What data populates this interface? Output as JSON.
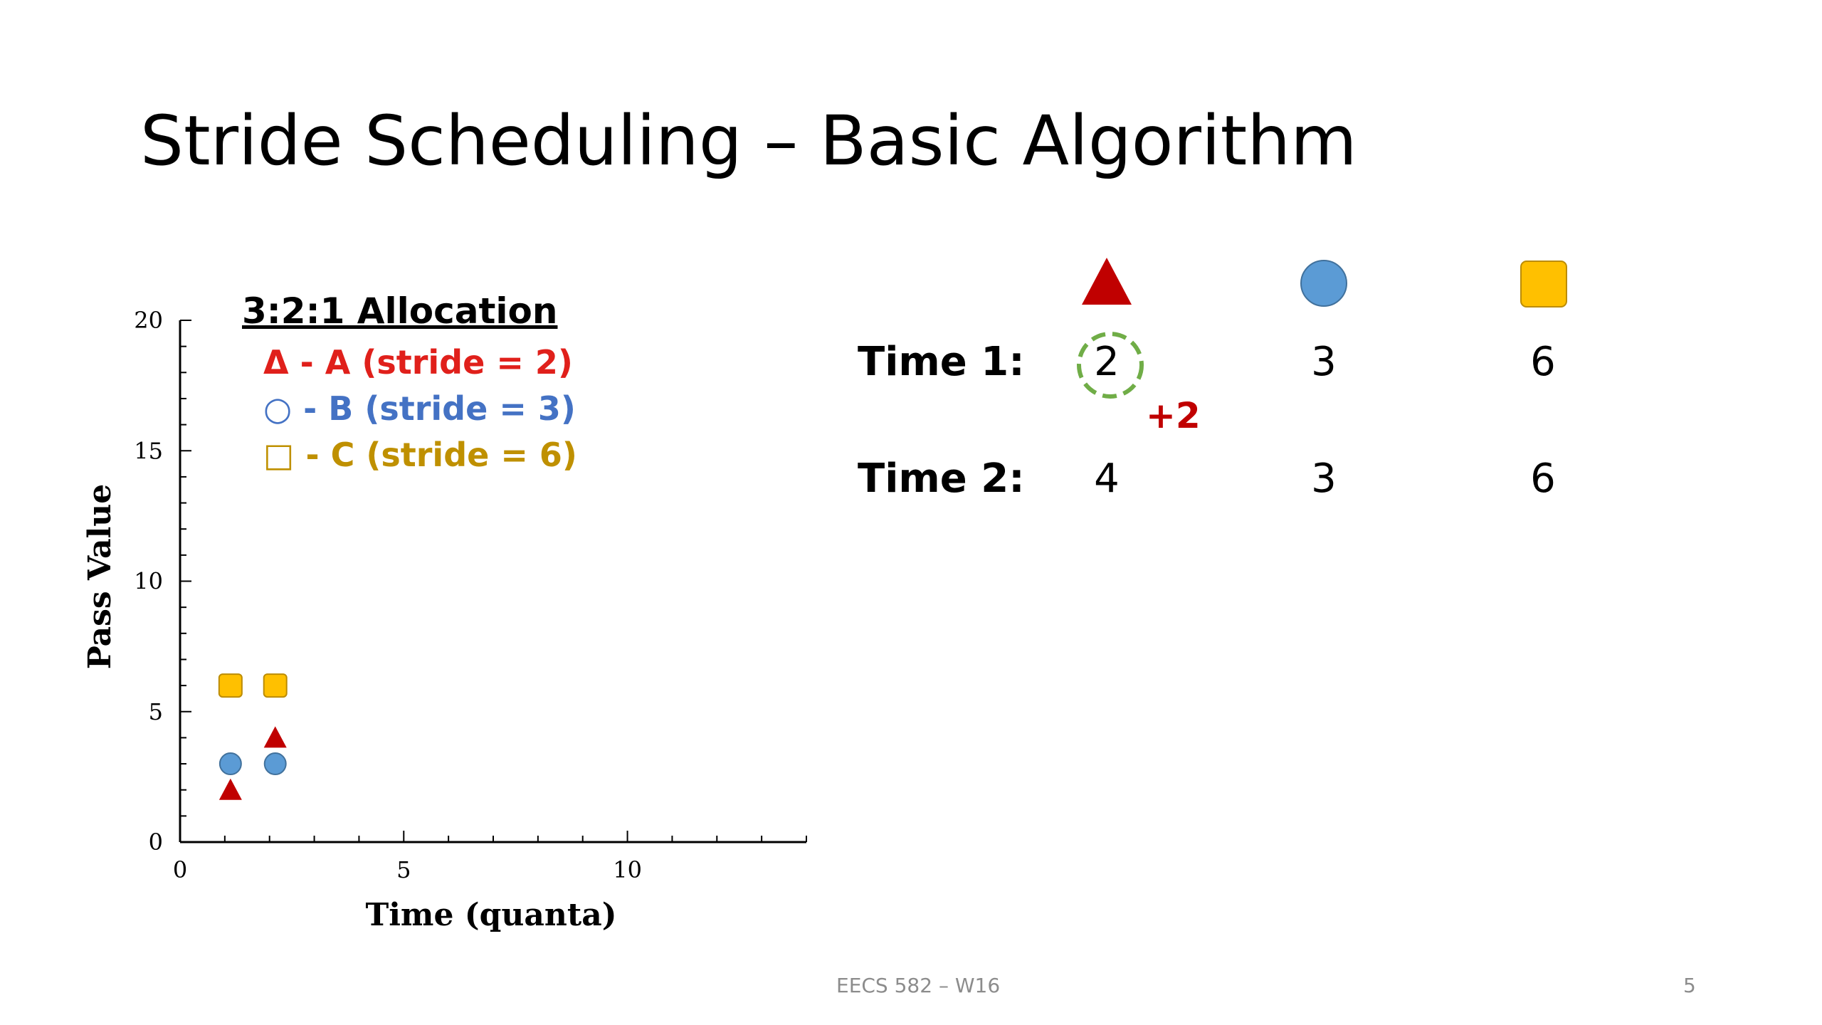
{
  "slide": {
    "title": "Stride Scheduling – Basic Algorithm",
    "footer": "EECS 582 – W16",
    "page_number": "5"
  },
  "legend": {
    "title": "3:2:1 Allocation",
    "items": [
      {
        "label": "Δ - A (stride = 2)",
        "color": "#e0201b"
      },
      {
        "label": "○ - B (stride = 3)",
        "color": "#4472c4"
      },
      {
        "label": "□ - C (stride = 6)",
        "color": "#bf9000"
      }
    ]
  },
  "table": {
    "headers": [
      {
        "icon": "triangle-icon",
        "color": "#c00000"
      },
      {
        "icon": "circle-icon",
        "color": "#5b9bd5"
      },
      {
        "icon": "square-icon",
        "color": "#ffc000"
      }
    ],
    "rows": [
      {
        "label": "Time 1:",
        "values": [
          "2",
          "3",
          "6"
        ]
      },
      {
        "label": "Time 2:",
        "values": [
          "4",
          "3",
          "6"
        ]
      }
    ],
    "increment": "+2",
    "highlight_color": "#70ad47"
  },
  "chart_data": {
    "type": "scatter",
    "xlabel": "Time (quanta)",
    "ylabel": "Pass Value",
    "xlim": [
      0,
      14
    ],
    "ylim": [
      0,
      20
    ],
    "x_ticks": [
      0,
      5,
      10
    ],
    "y_ticks": [
      0,
      5,
      10,
      15,
      20
    ],
    "series": [
      {
        "marker": "triangle",
        "color": "#c00000",
        "points": [
          [
            1,
            2
          ],
          [
            2,
            4
          ]
        ]
      },
      {
        "marker": "circle",
        "color": "#5b9bd5",
        "points": [
          [
            1,
            3
          ],
          [
            2,
            3
          ]
        ]
      },
      {
        "marker": "square",
        "color": "#ffc000",
        "points": [
          [
            1,
            6
          ],
          [
            2,
            6
          ]
        ]
      }
    ]
  }
}
